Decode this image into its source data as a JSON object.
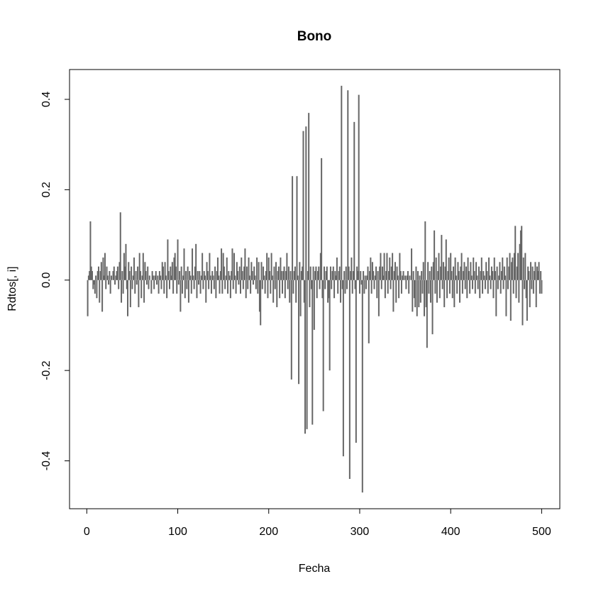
{
  "chart_data": {
    "type": "bar",
    "title": "Bono",
    "x_label": "Fecha",
    "y_label": "Rdtos[, i]",
    "color": "#666666",
    "xlim": [
      -18.96,
      519.96
    ],
    "ylim": [
      -0.506,
      0.466
    ],
    "xticks": [
      0,
      100,
      200,
      300,
      400,
      500
    ],
    "yticks": [
      -0.4,
      -0.2,
      {
        "value": 0,
        "label": "0.0"
      },
      0.2,
      0.4
    ],
    "x": [
      1,
      2,
      3,
      4,
      5,
      6,
      7,
      8,
      9,
      10,
      11,
      12,
      13,
      14,
      15,
      16,
      17,
      18,
      19,
      20,
      21,
      22,
      23,
      24,
      25,
      26,
      27,
      28,
      29,
      30,
      31,
      32,
      33,
      34,
      35,
      36,
      37,
      38,
      39,
      40,
      41,
      42,
      43,
      44,
      45,
      46,
      47,
      48,
      49,
      50,
      51,
      52,
      53,
      54,
      55,
      56,
      57,
      58,
      59,
      60,
      61,
      62,
      63,
      64,
      65,
      66,
      67,
      68,
      69,
      70,
      71,
      72,
      73,
      74,
      75,
      76,
      77,
      78,
      79,
      80,
      81,
      82,
      83,
      84,
      85,
      86,
      87,
      88,
      89,
      90,
      91,
      92,
      93,
      94,
      95,
      96,
      97,
      98,
      99,
      100,
      101,
      102,
      103,
      104,
      105,
      106,
      107,
      108,
      109,
      110,
      111,
      112,
      113,
      114,
      115,
      116,
      117,
      118,
      119,
      120,
      121,
      122,
      123,
      124,
      125,
      126,
      127,
      128,
      129,
      130,
      131,
      132,
      133,
      134,
      135,
      136,
      137,
      138,
      139,
      140,
      141,
      142,
      143,
      144,
      145,
      146,
      147,
      148,
      149,
      150,
      151,
      152,
      153,
      154,
      155,
      156,
      157,
      158,
      159,
      160,
      161,
      162,
      163,
      164,
      165,
      166,
      167,
      168,
      169,
      170,
      171,
      172,
      173,
      174,
      175,
      176,
      177,
      178,
      179,
      180,
      181,
      182,
      183,
      184,
      185,
      186,
      187,
      188,
      189,
      190,
      191,
      192,
      193,
      194,
      195,
      196,
      197,
      198,
      199,
      200,
      201,
      202,
      203,
      204,
      205,
      206,
      207,
      208,
      209,
      210,
      211,
      212,
      213,
      214,
      215,
      216,
      217,
      218,
      219,
      220,
      221,
      222,
      223,
      224,
      225,
      226,
      227,
      228,
      229,
      230,
      231,
      232,
      233,
      234,
      235,
      236,
      237,
      238,
      239,
      240,
      241,
      242,
      243,
      244,
      245,
      246,
      247,
      248,
      249,
      250,
      251,
      252,
      253,
      254,
      255,
      256,
      257,
      258,
      259,
      260,
      261,
      262,
      263,
      264,
      265,
      266,
      267,
      268,
      269,
      270,
      271,
      272,
      273,
      274,
      275,
      276,
      277,
      278,
      279,
      280,
      281,
      282,
      283,
      284,
      285,
      286,
      287,
      288,
      289,
      290,
      291,
      292,
      293,
      294,
      295,
      296,
      297,
      298,
      299,
      300,
      301,
      302,
      303,
      304,
      305,
      306,
      307,
      308,
      309,
      310,
      311,
      312,
      313,
      314,
      315,
      316,
      317,
      318,
      319,
      320,
      321,
      322,
      323,
      324,
      325,
      326,
      327,
      328,
      329,
      330,
      331,
      332,
      333,
      334,
      335,
      336,
      337,
      338,
      339,
      340,
      341,
      342,
      343,
      344,
      345,
      346,
      347,
      348,
      349,
      350,
      351,
      352,
      353,
      354,
      355,
      356,
      357,
      358,
      359,
      360,
      361,
      362,
      363,
      364,
      365,
      366,
      367,
      368,
      369,
      370,
      371,
      372,
      373,
      374,
      375,
      376,
      377,
      378,
      379,
      380,
      381,
      382,
      383,
      384,
      385,
      386,
      387,
      388,
      389,
      390,
      391,
      392,
      393,
      394,
      395,
      396,
      397,
      398,
      399,
      400,
      401,
      402,
      403,
      404,
      405,
      406,
      407,
      408,
      409,
      410,
      411,
      412,
      413,
      414,
      415,
      416,
      417,
      418,
      419,
      420,
      421,
      422,
      423,
      424,
      425,
      426,
      427,
      428,
      429,
      430,
      431,
      432,
      433,
      434,
      435,
      436,
      437,
      438,
      439,
      440,
      441,
      442,
      443,
      444,
      445,
      446,
      447,
      448,
      449,
      450,
      451,
      452,
      453,
      454,
      455,
      456,
      457,
      458,
      459,
      460,
      461,
      462,
      463,
      464,
      465,
      466,
      467,
      468,
      469,
      470,
      471,
      472,
      473,
      474,
      475,
      476,
      477,
      478,
      479,
      480,
      481,
      482,
      483,
      484,
      485,
      486,
      487,
      488,
      489,
      490,
      491,
      492,
      493,
      494,
      495,
      496,
      497,
      498,
      499,
      500
    ],
    "values": [
      -0.08,
      0.01,
      0.02,
      0.13,
      0.03,
      0.02,
      -0.02,
      -0.01,
      -0.03,
      0.01,
      -0.04,
      0.02,
      0.03,
      -0.05,
      0.02,
      0.04,
      -0.07,
      0.05,
      0.01,
      0.06,
      -0.02,
      0.03,
      0.01,
      -0.01,
      0.02,
      -0.03,
      0.01,
      0.0,
      0.02,
      0.03,
      -0.01,
      0.01,
      0.02,
      0.03,
      -0.02,
      0.04,
      0.15,
      -0.05,
      0.02,
      -0.03,
      0.06,
      0.03,
      0.08,
      -0.02,
      -0.08,
      0.04,
      0.02,
      -0.06,
      0.03,
      -0.02,
      0.01,
      0.05,
      -0.03,
      0.02,
      -0.01,
      0.03,
      -0.06,
      0.06,
      0.02,
      -0.04,
      0.01,
      0.06,
      -0.05,
      0.04,
      0.02,
      -0.01,
      0.03,
      -0.02,
      0.01,
      0.0,
      -0.03,
      0.02,
      0.01,
      -0.02,
      0.01,
      0.02,
      -0.01,
      0.01,
      -0.03,
      0.02,
      0.01,
      -0.02,
      0.04,
      0.03,
      -0.03,
      0.04,
      0.01,
      -0.04,
      0.09,
      0.02,
      -0.02,
      0.03,
      0.01,
      0.04,
      -0.03,
      0.05,
      0.06,
      0.03,
      -0.03,
      0.09,
      -0.01,
      0.02,
      -0.07,
      0.03,
      -0.03,
      0.01,
      0.07,
      -0.04,
      0.02,
      -0.02,
      0.03,
      -0.05,
      0.02,
      0.01,
      -0.03,
      0.07,
      0.01,
      -0.02,
      0.03,
      0.08,
      -0.04,
      0.02,
      -0.01,
      0.02,
      -0.03,
      0.01,
      0.06,
      -0.02,
      0.02,
      0.01,
      -0.05,
      0.04,
      0.02,
      -0.02,
      0.06,
      0.01,
      -0.03,
      0.02,
      0.01,
      -0.02,
      0.03,
      -0.04,
      0.02,
      0.05,
      0.01,
      -0.03,
      0.02,
      0.07,
      -0.03,
      0.06,
      0.03,
      -0.02,
      0.01,
      0.05,
      -0.03,
      0.02,
      0.01,
      -0.04,
      0.02,
      0.07,
      -0.02,
      0.06,
      0.01,
      -0.03,
      0.04,
      0.02,
      -0.01,
      0.03,
      -0.03,
      0.05,
      0.02,
      -0.02,
      0.03,
      0.07,
      -0.04,
      0.03,
      -0.02,
      0.05,
      0.01,
      -0.03,
      0.04,
      0.02,
      -0.01,
      0.03,
      0.01,
      -0.02,
      0.05,
      -0.03,
      0.04,
      -0.07,
      -0.1,
      0.04,
      -0.02,
      0.03,
      0.01,
      -0.03,
      0.02,
      0.06,
      -0.04,
      0.05,
      0.02,
      -0.03,
      0.06,
      0.01,
      -0.05,
      0.03,
      -0.02,
      0.04,
      -0.06,
      0.02,
      0.03,
      -0.04,
      0.05,
      0.02,
      -0.03,
      0.02,
      0.03,
      -0.04,
      0.02,
      0.06,
      -0.02,
      0.03,
      -0.05,
      0.02,
      -0.22,
      0.23,
      -0.03,
      0.02,
      0.03,
      -0.05,
      0.23,
      0.01,
      -0.23,
      0.04,
      -0.08,
      0.02,
      0.03,
      0.33,
      -0.05,
      -0.34,
      0.34,
      -0.33,
      0.02,
      0.37,
      -0.06,
      0.03,
      -0.02,
      -0.32,
      0.03,
      -0.11,
      0.02,
      0.03,
      -0.04,
      0.02,
      0.03,
      -0.02,
      0.06,
      0.27,
      -0.04,
      -0.29,
      0.03,
      -0.02,
      0.02,
      0.03,
      -0.05,
      -0.04,
      -0.2,
      0.03,
      -0.02,
      0.02,
      0.03,
      -0.04,
      0.02,
      0.01,
      0.05,
      -0.03,
      0.02,
      0.03,
      -0.05,
      0.43,
      -0.02,
      -0.39,
      0.02,
      -0.03,
      0.03,
      -0.02,
      0.42,
      0.03,
      -0.44,
      0.02,
      0.05,
      -0.03,
      0.02,
      0.35,
      -0.02,
      -0.36,
      0.03,
      0.02,
      0.41,
      -0.03,
      0.02,
      -0.01,
      -0.47,
      0.02,
      -0.03,
      0.01,
      -0.02,
      0.01,
      0.03,
      -0.14,
      0.02,
      0.05,
      -0.03,
      0.04,
      0.02,
      -0.02,
      0.01,
      0.03,
      -0.04,
      0.02,
      -0.08,
      0.03,
      0.06,
      -0.02,
      0.03,
      0.01,
      0.06,
      -0.04,
      0.02,
      0.06,
      -0.03,
      0.02,
      0.05,
      -0.02,
      0.03,
      0.06,
      -0.07,
      0.02,
      0.04,
      -0.05,
      0.03,
      0.01,
      -0.04,
      0.06,
      0.02,
      -0.03,
      0.01,
      0.02,
      0.0,
      0.01,
      -0.02,
      0.01,
      0.02,
      -0.03,
      0.01,
      0.0,
      0.07,
      -0.07,
      0.02,
      -0.04,
      -0.06,
      0.03,
      -0.08,
      0.02,
      -0.06,
      0.01,
      -0.05,
      0.02,
      -0.03,
      0.04,
      -0.08,
      0.13,
      -0.06,
      -0.15,
      0.04,
      -0.03,
      0.02,
      -0.05,
      0.03,
      -0.12,
      0.04,
      0.11,
      -0.03,
      0.05,
      -0.05,
      0.02,
      0.06,
      -0.04,
      0.03,
      0.1,
      -0.02,
      0.04,
      -0.06,
      0.03,
      0.09,
      -0.04,
      0.02,
      0.05,
      -0.03,
      0.06,
      0.02,
      -0.04,
      0.03,
      -0.06,
      0.05,
      0.01,
      -0.03,
      0.04,
      0.02,
      -0.05,
      0.03,
      0.06,
      -0.03,
      0.02,
      0.04,
      -0.02,
      0.03,
      -0.04,
      0.05,
      0.02,
      -0.03,
      0.04,
      0.01,
      -0.02,
      0.05,
      0.02,
      -0.03,
      0.04,
      0.01,
      -0.02,
      0.03,
      -0.04,
      0.02,
      0.05,
      -0.03,
      0.02,
      0.01,
      -0.02,
      0.04,
      0.02,
      -0.03,
      0.05,
      0.01,
      -0.02,
      0.03,
      0.02,
      -0.04,
      0.05,
      0.02,
      -0.08,
      0.03,
      -0.02,
      0.01,
      0.04,
      -0.03,
      0.02,
      0.05,
      -0.02,
      0.03,
      0.01,
      -0.08,
      0.05,
      -0.02,
      0.03,
      0.06,
      -0.09,
      0.04,
      0.05,
      -0.03,
      0.06,
      0.12,
      -0.04,
      0.03,
      0.06,
      -0.05,
      0.08,
      0.11,
      0.12,
      -0.1,
      0.05,
      -0.02,
      0.06,
      -0.04,
      -0.09,
      0.03,
      0.02,
      -0.06,
      0.04,
      -0.02,
      0.03,
      -0.03,
      0.02,
      0.04,
      -0.06,
      0.03,
      0.02,
      0.04,
      -0.03,
      0.02,
      -0.03
    ]
  }
}
